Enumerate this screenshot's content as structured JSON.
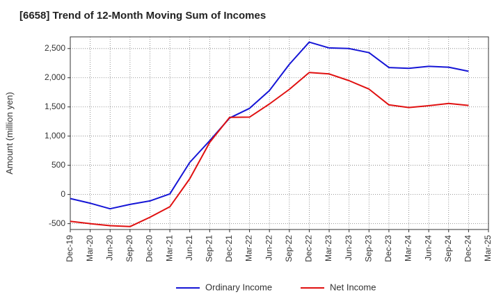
{
  "chart_data": {
    "type": "line",
    "title": "[6658]  Trend of 12-Month Moving Sum of Incomes",
    "xlabel": "",
    "ylabel": "Amount (million yen)",
    "ylim": [
      -600,
      2700
    ],
    "yticks": [
      -500,
      0,
      500,
      1000,
      1500,
      2000,
      2500
    ],
    "ytick_labels": [
      "-500",
      "0",
      "500",
      "1,000",
      "1,500",
      "2,000",
      "2,500"
    ],
    "x": [
      "Dec-19",
      "Mar-20",
      "Jun-20",
      "Sep-20",
      "Dec-20",
      "Mar-21",
      "Jun-21",
      "Sep-21",
      "Dec-21",
      "Mar-22",
      "Jun-22",
      "Sep-22",
      "Dec-22",
      "Mar-23",
      "Jun-23",
      "Sep-23",
      "Dec-23",
      "Mar-24",
      "Jun-24",
      "Sep-24",
      "Dec-24",
      "Mar-25"
    ],
    "grid": true,
    "legend_position": "bottom",
    "series": [
      {
        "name": "Ordinary Income",
        "color": "#1515d6",
        "values": [
          -70,
          -150,
          -245,
          -170,
          -110,
          10,
          550,
          920,
          1310,
          1475,
          1780,
          2230,
          2610,
          2510,
          2500,
          2430,
          2175,
          2160,
          2195,
          2180,
          2110,
          null
        ]
      },
      {
        "name": "Net Income",
        "color": "#e01010",
        "values": [
          -460,
          -500,
          -535,
          -550,
          -390,
          -210,
          270,
          890,
          1320,
          1325,
          1550,
          1800,
          2090,
          2065,
          1950,
          1805,
          1535,
          1490,
          1520,
          1560,
          1525,
          null
        ]
      }
    ]
  }
}
